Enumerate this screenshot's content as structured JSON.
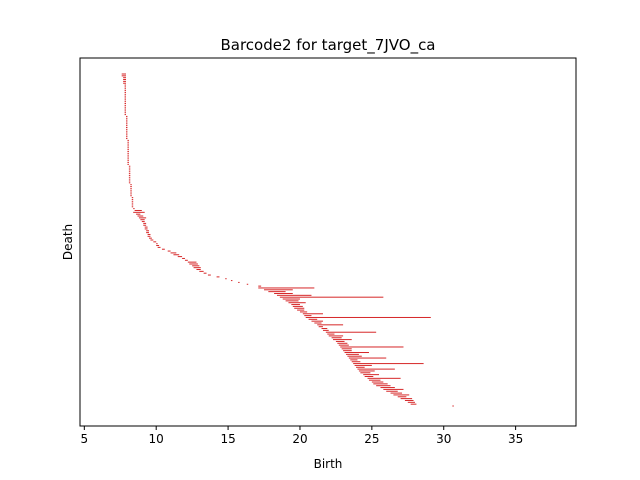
{
  "chart_data": {
    "type": "barcode",
    "title": "Barcode2 for target_7JVO_ca",
    "xlabel": "Birth",
    "ylabel": "Death",
    "xlim": [
      4.7,
      39.2
    ],
    "xticks": [
      5,
      10,
      15,
      20,
      25,
      30,
      35
    ],
    "bar_color": "#d62728",
    "bars": [
      [
        7.6,
        7.9
      ],
      [
        7.6,
        7.9
      ],
      [
        7.7,
        7.9
      ],
      [
        7.7,
        7.9
      ],
      [
        7.7,
        7.9
      ],
      [
        7.7,
        7.9
      ],
      [
        7.8,
        7.9
      ],
      [
        7.8,
        7.9
      ],
      [
        7.8,
        7.9
      ],
      [
        7.8,
        7.9
      ],
      [
        7.8,
        7.9
      ],
      [
        7.8,
        7.9
      ],
      [
        7.8,
        7.9
      ],
      [
        7.8,
        7.9
      ],
      [
        7.8,
        7.9
      ],
      [
        7.8,
        7.9
      ],
      [
        7.8,
        7.9
      ],
      [
        7.8,
        7.9
      ],
      [
        7.8,
        7.9
      ],
      [
        7.8,
        7.9
      ],
      [
        7.8,
        7.9
      ],
      [
        7.8,
        7.9
      ],
      [
        7.8,
        7.9
      ],
      [
        7.9,
        8.0
      ],
      [
        7.9,
        8.0
      ],
      [
        7.9,
        8.0
      ],
      [
        7.9,
        8.0
      ],
      [
        7.9,
        8.0
      ],
      [
        7.9,
        8.0
      ],
      [
        7.9,
        8.0
      ],
      [
        7.9,
        8.0
      ],
      [
        7.9,
        8.0
      ],
      [
        7.9,
        8.0
      ],
      [
        7.9,
        8.0
      ],
      [
        7.9,
        8.0
      ],
      [
        7.9,
        8.0
      ],
      [
        8.0,
        8.1
      ],
      [
        8.0,
        8.1
      ],
      [
        8.0,
        8.1
      ],
      [
        8.0,
        8.1
      ],
      [
        8.0,
        8.1
      ],
      [
        8.0,
        8.1
      ],
      [
        8.0,
        8.1
      ],
      [
        8.0,
        8.1
      ],
      [
        8.0,
        8.1
      ],
      [
        8.0,
        8.1
      ],
      [
        8.0,
        8.1
      ],
      [
        8.0,
        8.1
      ],
      [
        8.0,
        8.1
      ],
      [
        8.0,
        8.1
      ],
      [
        8.1,
        8.2
      ],
      [
        8.1,
        8.2
      ],
      [
        8.1,
        8.2
      ],
      [
        8.1,
        8.2
      ],
      [
        8.1,
        8.2
      ],
      [
        8.1,
        8.2
      ],
      [
        8.1,
        8.2
      ],
      [
        8.1,
        8.2
      ],
      [
        8.1,
        8.2
      ],
      [
        8.1,
        8.2
      ],
      [
        8.2,
        8.3
      ],
      [
        8.2,
        8.3
      ],
      [
        8.2,
        8.3
      ],
      [
        8.2,
        8.3
      ],
      [
        8.2,
        8.3
      ],
      [
        8.2,
        8.3
      ],
      [
        8.2,
        8.3
      ],
      [
        8.3,
        8.4
      ],
      [
        8.3,
        8.4
      ],
      [
        8.3,
        8.4
      ],
      [
        8.3,
        8.4
      ],
      [
        8.3,
        8.4
      ],
      [
        8.3,
        8.4
      ],
      [
        8.4,
        8.5
      ],
      [
        8.5,
        9.0
      ],
      [
        8.4,
        9.2
      ],
      [
        8.6,
        8.9
      ],
      [
        8.7,
        9.1
      ],
      [
        8.8,
        9.3
      ],
      [
        8.9,
        9.2
      ],
      [
        9.0,
        9.2
      ],
      [
        9.1,
        9.3
      ],
      [
        9.1,
        9.3
      ],
      [
        9.2,
        9.4
      ],
      [
        9.2,
        9.4
      ],
      [
        9.3,
        9.5
      ],
      [
        9.3,
        9.5
      ],
      [
        9.4,
        9.6
      ],
      [
        9.4,
        9.6
      ],
      [
        9.5,
        9.7
      ],
      [
        9.6,
        9.8
      ],
      [
        9.8,
        10.0
      ],
      [
        10.0,
        10.1
      ],
      [
        10.0,
        10.2
      ],
      [
        10.1,
        10.3
      ],
      [
        10.4,
        10.6
      ],
      [
        10.8,
        11.0
      ],
      [
        11.0,
        11.4
      ],
      [
        11.2,
        11.6
      ],
      [
        11.5,
        11.8
      ],
      [
        11.8,
        12.0
      ],
      [
        12.0,
        12.2
      ],
      [
        12.2,
        12.8
      ],
      [
        12.3,
        12.9
      ],
      [
        12.5,
        13.0
      ],
      [
        12.6,
        13.1
      ],
      [
        12.8,
        13.1
      ],
      [
        13.0,
        13.3
      ],
      [
        13.3,
        13.5
      ],
      [
        13.6,
        13.8
      ],
      [
        14.2,
        14.4
      ],
      [
        14.8,
        14.9
      ],
      [
        15.2,
        15.3
      ],
      [
        15.7,
        15.8
      ],
      [
        16.3,
        16.4
      ],
      [
        17.1,
        17.3
      ],
      [
        17.1,
        21.0
      ],
      [
        17.5,
        19.5
      ],
      [
        17.8,
        19.0
      ],
      [
        18.2,
        19.5
      ],
      [
        18.4,
        20.8
      ],
      [
        18.6,
        25.8
      ],
      [
        18.8,
        20.0
      ],
      [
        19.0,
        19.9
      ],
      [
        19.2,
        20.4
      ],
      [
        19.4,
        20.0
      ],
      [
        19.5,
        20.2
      ],
      [
        19.6,
        20.3
      ],
      [
        19.8,
        20.3
      ],
      [
        20.0,
        20.5
      ],
      [
        20.2,
        21.6
      ],
      [
        20.3,
        20.8
      ],
      [
        20.4,
        29.1
      ],
      [
        20.6,
        21.2
      ],
      [
        20.8,
        21.6
      ],
      [
        21.0,
        21.5
      ],
      [
        21.2,
        23.0
      ],
      [
        21.3,
        21.6
      ],
      [
        21.5,
        21.9
      ],
      [
        21.6,
        22.0
      ],
      [
        21.8,
        25.3
      ],
      [
        21.9,
        22.4
      ],
      [
        22.0,
        23.0
      ],
      [
        22.2,
        22.9
      ],
      [
        22.3,
        23.6
      ],
      [
        22.5,
        23.1
      ],
      [
        22.6,
        23.3
      ],
      [
        22.7,
        23.4
      ],
      [
        22.8,
        27.2
      ],
      [
        22.9,
        23.6
      ],
      [
        23.0,
        23.6
      ],
      [
        23.1,
        24.8
      ],
      [
        23.2,
        24.1
      ],
      [
        23.3,
        24.3
      ],
      [
        23.4,
        26.0
      ],
      [
        23.5,
        24.0
      ],
      [
        23.6,
        24.2
      ],
      [
        23.7,
        28.6
      ],
      [
        23.8,
        25.0
      ],
      [
        23.9,
        24.5
      ],
      [
        24.0,
        26.6
      ],
      [
        24.1,
        25.2
      ],
      [
        24.2,
        24.9
      ],
      [
        24.4,
        25.5
      ],
      [
        24.5,
        25.1
      ],
      [
        24.7,
        27.0
      ],
      [
        24.8,
        25.6
      ],
      [
        25.0,
        25.8
      ],
      [
        25.1,
        26.1
      ],
      [
        25.3,
        26.3
      ],
      [
        25.6,
        26.6
      ],
      [
        25.8,
        27.2
      ],
      [
        26.0,
        26.8
      ],
      [
        26.3,
        27.1
      ],
      [
        26.5,
        27.6
      ],
      [
        26.8,
        27.4
      ],
      [
        27.0,
        27.8
      ],
      [
        27.3,
        27.9
      ],
      [
        27.5,
        28.0
      ],
      [
        27.7,
        28.1
      ],
      [
        30.6,
        30.7
      ]
    ]
  }
}
